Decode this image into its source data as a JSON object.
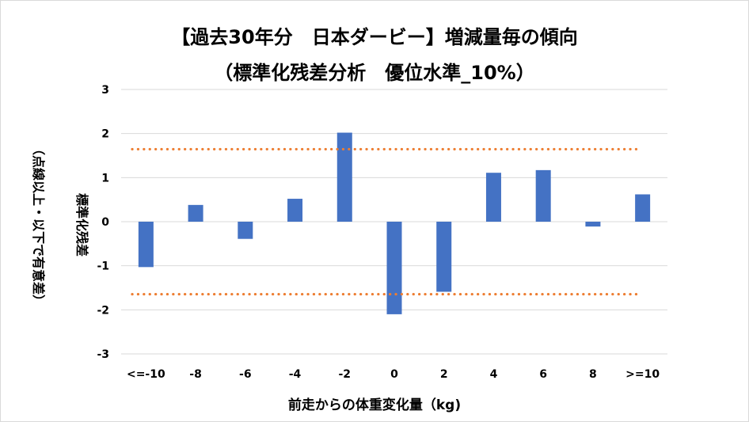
{
  "chart_data": {
    "type": "bar",
    "title": "【過去30年分　日本ダービー】増減量毎の傾向",
    "subtitle": "（標準化残差分析　優位水準_10%）",
    "xlabel": "前走からの体重変化量（kg)",
    "ylabel": "標準化残差",
    "ylabel_note": "（点線以上・以下で有意差）",
    "categories": [
      "<=-10",
      "-8",
      "-6",
      "-4",
      "-2",
      "0",
      "2",
      "4",
      "6",
      "8",
      ">=10"
    ],
    "values": [
      -1.03,
      0.38,
      -0.39,
      0.52,
      2.02,
      -2.1,
      -1.59,
      1.11,
      1.17,
      -0.11,
      0.62
    ],
    "ylim": [
      -3,
      3
    ],
    "yticks": [
      3,
      2,
      1,
      0,
      -1,
      -2,
      -3
    ],
    "threshold_lines": [
      1.645,
      -1.645
    ],
    "bar_color": "#4472c4",
    "threshold_color": "#ed7d31",
    "grid": true,
    "legend": "none"
  }
}
